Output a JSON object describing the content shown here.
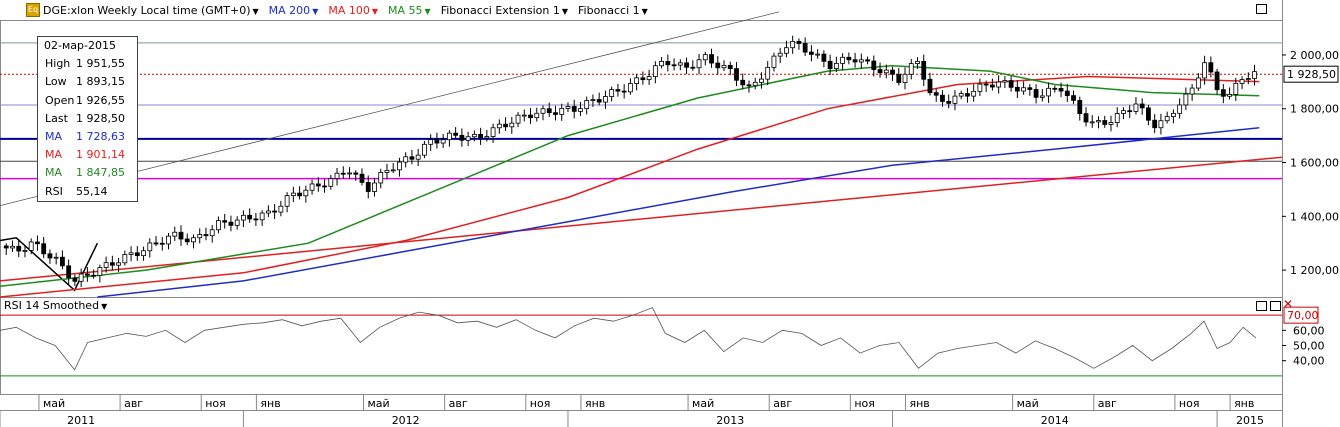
{
  "header": {
    "symbol": "DGE:xlon Weekly Local time (GMT+0)",
    "ma200": "MA 200",
    "ma100": "MA 100",
    "ma55": "MA 55",
    "fib_ext": "Fibonacci Extension 1",
    "fib": "Fibonacci 1",
    "icon": "Eq"
  },
  "info_box": {
    "date": "02-мар-2015",
    "rows": [
      {
        "label": "High",
        "value": "1 951,55",
        "color": "#000000"
      },
      {
        "label": "Low",
        "value": "1 893,15",
        "color": "#000000"
      },
      {
        "label": "Open",
        "value": "1 926,55",
        "color": "#000000"
      },
      {
        "label": "Last",
        "value": "1 928,50",
        "color": "#000000"
      },
      {
        "label": "MA",
        "value": "1 728,63",
        "color": "#1f2dc8"
      },
      {
        "label": "MA",
        "value": "1 901,14",
        "color": "#e02020"
      },
      {
        "label": "MA",
        "value": "1 847,85",
        "color": "#1e8a1e"
      },
      {
        "label": "RSI",
        "value": "55,14",
        "color": "#000000"
      }
    ]
  },
  "rsi_panel": {
    "title": "RSI 14 Smoothed",
    "levels": [
      70,
      30
    ],
    "level_label": "70,00"
  },
  "colors": {
    "ma200": "#1f2dc8",
    "ma100": "#e02020",
    "ma55": "#1e8a1e",
    "fib_magenta": "#e000e0",
    "fib_blue": "#00009a",
    "current_price": "#d00000"
  },
  "chart_data": [
    {
      "type": "candlestick",
      "title": "DGE:xlon Weekly",
      "ylim": [
        1100,
        2130
      ],
      "yticks": [
        1200,
        1400,
        1600,
        1800,
        2000
      ],
      "ytick_labels": [
        "1 200,00",
        "1 400,00",
        "1 600,00",
        "1 800,00",
        "2 000,00"
      ],
      "current_price": 1928.5,
      "current_price_label": "1 928,50",
      "x_month_labels": [
        {
          "label": "май",
          "year": 2011.37
        },
        {
          "label": "авг",
          "year": 2011.62
        },
        {
          "label": "ноя",
          "year": 2011.87
        },
        {
          "label": "янв",
          "year": 2012.04
        },
        {
          "label": "май",
          "year": 2012.37
        },
        {
          "label": "авг",
          "year": 2012.62
        },
        {
          "label": "ноя",
          "year": 2012.87
        },
        {
          "label": "янв",
          "year": 2013.04
        },
        {
          "label": "май",
          "year": 2013.37
        },
        {
          "label": "авг",
          "year": 2013.62
        },
        {
          "label": "ноя",
          "year": 2013.87
        },
        {
          "label": "янв",
          "year": 2014.04
        },
        {
          "label": "май",
          "year": 2014.37
        },
        {
          "label": "авг",
          "year": 2014.62
        },
        {
          "label": "ноя",
          "year": 2014.87
        },
        {
          "label": "янв",
          "year": 2015.04
        }
      ],
      "x_year_labels": [
        {
          "label": "2011",
          "year": 2011.5
        },
        {
          "label": "2012",
          "year": 2012.5
        },
        {
          "label": "2013",
          "year": 2013.5
        },
        {
          "label": "2014",
          "year": 2014.5
        },
        {
          "label": "2015",
          "year": 2015.2
        }
      ],
      "close_path": [
        [
          2011.25,
          1290
        ],
        [
          2011.3,
          1270
        ],
        [
          2011.35,
          1300
        ],
        [
          2011.42,
          1240
        ],
        [
          2011.48,
          1160
        ],
        [
          2011.55,
          1200
        ],
        [
          2011.62,
          1240
        ],
        [
          2011.7,
          1280
        ],
        [
          2011.78,
          1330
        ],
        [
          2011.85,
          1310
        ],
        [
          2011.92,
          1370
        ],
        [
          2012.0,
          1390
        ],
        [
          2012.08,
          1410
        ],
        [
          2012.15,
          1480
        ],
        [
          2012.22,
          1510
        ],
        [
          2012.28,
          1540
        ],
        [
          2012.32,
          1580
        ],
        [
          2012.38,
          1500
        ],
        [
          2012.45,
          1580
        ],
        [
          2012.52,
          1620
        ],
        [
          2012.58,
          1680
        ],
        [
          2012.65,
          1700
        ],
        [
          2012.72,
          1690
        ],
        [
          2012.8,
          1740
        ],
        [
          2012.88,
          1780
        ],
        [
          2012.95,
          1790
        ],
        [
          2013.02,
          1800
        ],
        [
          2013.1,
          1840
        ],
        [
          2013.18,
          1880
        ],
        [
          2013.25,
          1930
        ],
        [
          2013.3,
          1980
        ],
        [
          2013.36,
          1950
        ],
        [
          2013.42,
          1990
        ],
        [
          2013.5,
          1940
        ],
        [
          2013.56,
          1870
        ],
        [
          2013.62,
          1960
        ],
        [
          2013.68,
          2050
        ],
        [
          2013.75,
          2010
        ],
        [
          2013.8,
          1960
        ],
        [
          2013.88,
          1990
        ],
        [
          2013.95,
          1950
        ],
        [
          2014.02,
          1910
        ],
        [
          2014.08,
          1980
        ],
        [
          2014.12,
          1840
        ],
        [
          2014.18,
          1830
        ],
        [
          2014.25,
          1870
        ],
        [
          2014.32,
          1900
        ],
        [
          2014.38,
          1880
        ],
        [
          2014.45,
          1850
        ],
        [
          2014.52,
          1880
        ],
        [
          2014.58,
          1780
        ],
        [
          2014.62,
          1740
        ],
        [
          2014.68,
          1760
        ],
        [
          2014.75,
          1820
        ],
        [
          2014.8,
          1740
        ],
        [
          2014.85,
          1760
        ],
        [
          2014.88,
          1820
        ],
        [
          2014.92,
          1860
        ],
        [
          2014.96,
          1980
        ],
        [
          2015.0,
          1870
        ],
        [
          2015.04,
          1850
        ],
        [
          2015.08,
          1920
        ],
        [
          2015.12,
          1930
        ]
      ],
      "ma55": [
        [
          2011.25,
          1140
        ],
        [
          2011.7,
          1200
        ],
        [
          2012.2,
          1300
        ],
        [
          2012.6,
          1500
        ],
        [
          2013.0,
          1700
        ],
        [
          2013.4,
          1840
        ],
        [
          2013.8,
          1940
        ],
        [
          2014.0,
          1960
        ],
        [
          2014.3,
          1940
        ],
        [
          2014.5,
          1890
        ],
        [
          2014.8,
          1860
        ],
        [
          2015.13,
          1848
        ]
      ],
      "ma100": [
        [
          2011.25,
          1100
        ],
        [
          2012.0,
          1190
        ],
        [
          2012.5,
          1310
        ],
        [
          2013.0,
          1470
        ],
        [
          2013.4,
          1650
        ],
        [
          2013.8,
          1800
        ],
        [
          2014.2,
          1890
        ],
        [
          2014.6,
          1920
        ],
        [
          2015.13,
          1901
        ]
      ],
      "ma200": [
        [
          2011.55,
          1100
        ],
        [
          2012.0,
          1160
        ],
        [
          2012.5,
          1270
        ],
        [
          2013.0,
          1380
        ],
        [
          2013.5,
          1490
        ],
        [
          2014.0,
          1590
        ],
        [
          2014.5,
          1650
        ],
        [
          2015.13,
          1729
        ]
      ],
      "trendline": [
        [
          2011.25,
          1160
        ],
        [
          2015.2,
          1620
        ]
      ],
      "fib_trendline": [
        [
          2011.25,
          1440
        ],
        [
          2013.65,
          2160
        ]
      ],
      "fib_levels": [
        {
          "value": 2045,
          "color": "#7a9a9a"
        },
        {
          "value": 1814,
          "color": "#8a8ad0"
        },
        {
          "value": 1688,
          "color": "#00009a"
        },
        {
          "value": 1605,
          "color": "#444444"
        },
        {
          "value": 1540,
          "color": "#e000e0"
        }
      ],
      "fib_ext_segments": [
        [
          [
            2011.25,
            1310
          ],
          [
            2011.3,
            1320
          ],
          [
            2011.48,
            1125
          ],
          [
            2011.55,
            1300
          ]
        ]
      ]
    },
    {
      "type": "line",
      "title": "RSI 14 Smoothed",
      "ylim": [
        20,
        80
      ],
      "yticks": [
        40,
        50,
        60,
        70
      ],
      "ytick_labels": [
        "40,00",
        "50,00",
        "60,00",
        "70,00"
      ],
      "levels": [
        70,
        30
      ],
      "values": [
        [
          2011.25,
          60
        ],
        [
          2011.3,
          62
        ],
        [
          2011.36,
          55
        ],
        [
          2011.42,
          50
        ],
        [
          2011.48,
          34
        ],
        [
          2011.52,
          52
        ],
        [
          2011.58,
          55
        ],
        [
          2011.64,
          58
        ],
        [
          2011.7,
          56
        ],
        [
          2011.76,
          60
        ],
        [
          2011.82,
          52
        ],
        [
          2011.88,
          60
        ],
        [
          2011.94,
          62
        ],
        [
          2012.0,
          64
        ],
        [
          2012.06,
          65
        ],
        [
          2012.12,
          67
        ],
        [
          2012.18,
          63
        ],
        [
          2012.24,
          66
        ],
        [
          2012.3,
          68
        ],
        [
          2012.36,
          52
        ],
        [
          2012.42,
          62
        ],
        [
          2012.48,
          68
        ],
        [
          2012.54,
          72
        ],
        [
          2012.6,
          70
        ],
        [
          2012.66,
          65
        ],
        [
          2012.72,
          66
        ],
        [
          2012.78,
          62
        ],
        [
          2012.84,
          67
        ],
        [
          2012.9,
          60
        ],
        [
          2012.96,
          55
        ],
        [
          2013.02,
          63
        ],
        [
          2013.08,
          68
        ],
        [
          2013.14,
          66
        ],
        [
          2013.2,
          70
        ],
        [
          2013.26,
          75
        ],
        [
          2013.3,
          58
        ],
        [
          2013.36,
          52
        ],
        [
          2013.42,
          60
        ],
        [
          2013.48,
          46
        ],
        [
          2013.54,
          55
        ],
        [
          2013.6,
          52
        ],
        [
          2013.66,
          60
        ],
        [
          2013.72,
          58
        ],
        [
          2013.78,
          50
        ],
        [
          2013.84,
          55
        ],
        [
          2013.9,
          45
        ],
        [
          2013.96,
          50
        ],
        [
          2014.02,
          52
        ],
        [
          2014.08,
          35
        ],
        [
          2014.14,
          45
        ],
        [
          2014.2,
          48
        ],
        [
          2014.26,
          50
        ],
        [
          2014.32,
          52
        ],
        [
          2014.38,
          45
        ],
        [
          2014.44,
          53
        ],
        [
          2014.5,
          48
        ],
        [
          2014.56,
          42
        ],
        [
          2014.62,
          35
        ],
        [
          2014.68,
          42
        ],
        [
          2014.74,
          50
        ],
        [
          2014.8,
          40
        ],
        [
          2014.86,
          48
        ],
        [
          2014.92,
          58
        ],
        [
          2014.96,
          66
        ],
        [
          2015.0,
          48
        ],
        [
          2015.04,
          52
        ],
        [
          2015.08,
          62
        ],
        [
          2015.12,
          55
        ]
      ]
    }
  ]
}
